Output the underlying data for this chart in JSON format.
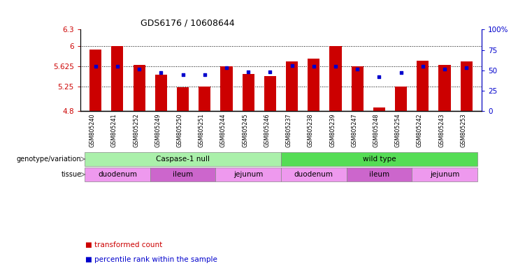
{
  "title": "GDS6176 / 10608644",
  "samples": [
    "GSM805240",
    "GSM805241",
    "GSM805252",
    "GSM805249",
    "GSM805250",
    "GSM805251",
    "GSM805244",
    "GSM805245",
    "GSM805246",
    "GSM805237",
    "GSM805238",
    "GSM805239",
    "GSM805247",
    "GSM805248",
    "GSM805254",
    "GSM805242",
    "GSM805243",
    "GSM805253"
  ],
  "transformed_count": [
    5.93,
    6.0,
    5.65,
    5.47,
    5.24,
    5.25,
    5.63,
    5.49,
    5.44,
    5.72,
    5.77,
    6.0,
    5.63,
    4.87,
    5.25,
    5.73,
    5.65,
    5.72
  ],
  "percentile_rank": [
    55,
    55,
    52,
    47,
    45,
    45,
    53,
    48,
    48,
    56,
    55,
    55,
    52,
    42,
    47,
    55,
    52,
    53
  ],
  "ylim_left": [
    4.8,
    6.3
  ],
  "ylim_right": [
    0,
    100
  ],
  "yticks_left": [
    4.8,
    5.25,
    5.625,
    6.0,
    6.3
  ],
  "yticks_left_labels": [
    "4.8",
    "5.25",
    "5.625",
    "6",
    "6.3"
  ],
  "yticks_right": [
    0,
    25,
    50,
    75,
    100
  ],
  "yticks_right_labels": [
    "0",
    "25",
    "50",
    "75",
    "100%"
  ],
  "hline_values": [
    5.25,
    5.625,
    6.0
  ],
  "bar_color": "#cc0000",
  "dot_color": "#0000cc",
  "bar_bottom": 4.8,
  "genotype_groups": [
    {
      "label": "Caspase-1 null",
      "start": 0,
      "end": 9,
      "color": "#aaf0aa"
    },
    {
      "label": "wild type",
      "start": 9,
      "end": 18,
      "color": "#55dd55"
    }
  ],
  "tissue_groups": [
    {
      "label": "duodenum",
      "start": 0,
      "end": 3,
      "color": "#ee99ee"
    },
    {
      "label": "ileum",
      "start": 3,
      "end": 6,
      "color": "#cc66cc"
    },
    {
      "label": "jejunum",
      "start": 6,
      "end": 9,
      "color": "#ee99ee"
    },
    {
      "label": "duodenum",
      "start": 9,
      "end": 12,
      "color": "#ee99ee"
    },
    {
      "label": "ileum",
      "start": 12,
      "end": 15,
      "color": "#cc66cc"
    },
    {
      "label": "jejunum",
      "start": 15,
      "end": 18,
      "color": "#ee99ee"
    }
  ],
  "legend_items": [
    {
      "label": "transformed count",
      "color": "#cc0000"
    },
    {
      "label": "percentile rank within the sample",
      "color": "#0000cc"
    }
  ],
  "genotype_label": "genotype/variation",
  "tissue_label": "tissue",
  "background_color": "#ffffff",
  "axis_color_left": "#cc0000",
  "axis_color_right": "#0000cc"
}
